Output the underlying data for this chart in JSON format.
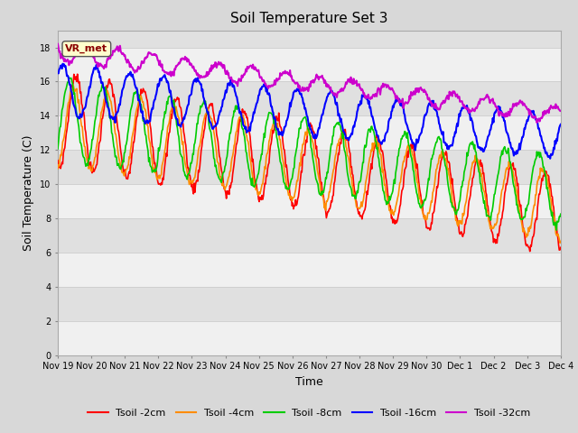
{
  "title": "Soil Temperature Set 3",
  "xlabel": "Time",
  "ylabel": "Soil Temperature (C)",
  "ylim": [
    0,
    19
  ],
  "yticks": [
    0,
    2,
    4,
    6,
    8,
    10,
    12,
    14,
    16,
    18
  ],
  "annotation_text": "VR_met",
  "series_names": [
    "Tsoil -2cm",
    "Tsoil -4cm",
    "Tsoil -8cm",
    "Tsoil -16cm",
    "Tsoil -32cm"
  ],
  "series_colors": [
    "#ff0000",
    "#ff8c00",
    "#00cc00",
    "#0000ff",
    "#cc00cc"
  ],
  "series_lw": [
    1.2,
    1.2,
    1.2,
    1.5,
    1.5
  ],
  "x_tick_labels": [
    "Nov 19",
    "Nov 20",
    "Nov 21",
    "Nov 22",
    "Nov 23",
    "Nov 24",
    "Nov 25",
    "Nov 26",
    "Nov 27",
    "Nov 28",
    "Nov 29",
    "Nov 30",
    "Dec 1",
    "Dec 2",
    "Dec 3",
    "Dec 4"
  ],
  "fig_facecolor": "#d8d8d8",
  "band_colors": [
    "#f0f0f0",
    "#e0e0e0"
  ],
  "band_boundaries": [
    0,
    2,
    4,
    6,
    8,
    10,
    12,
    14,
    16,
    18,
    20
  ]
}
